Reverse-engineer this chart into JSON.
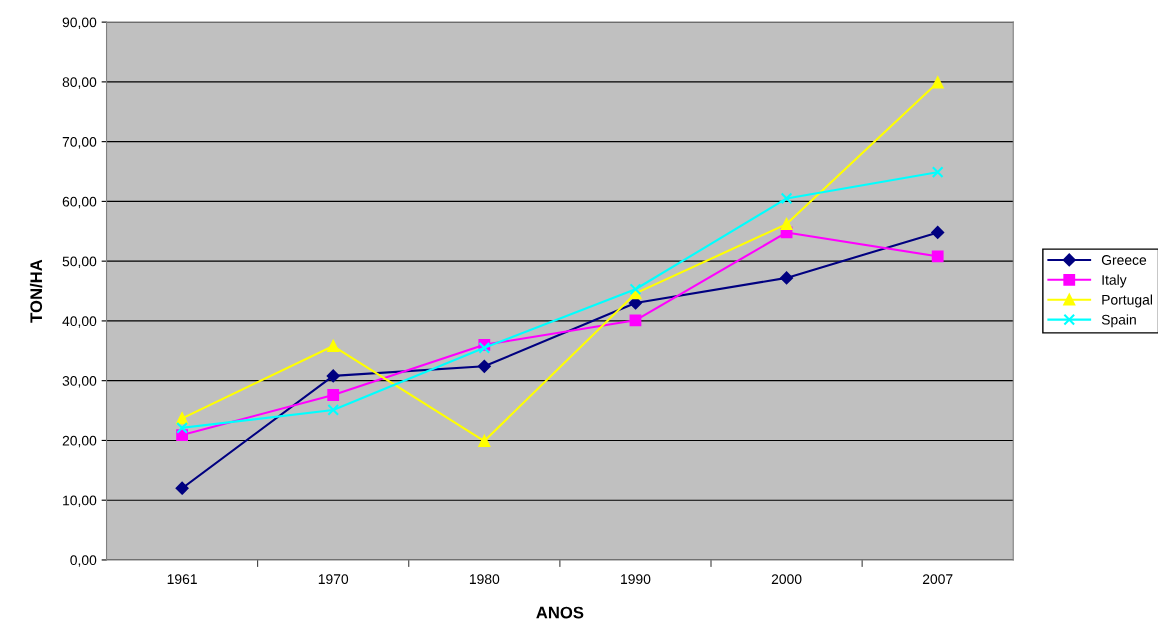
{
  "chart_data": {
    "type": "line",
    "xlabel": "ANOS",
    "ylabel": "TON/HA",
    "categories": [
      "1961",
      "1970",
      "1980",
      "1990",
      "2000",
      "2007"
    ],
    "series": [
      {
        "name": "Greece",
        "color": "#000080",
        "marker": "diamond",
        "values": [
          12.0,
          30.8,
          32.4,
          43.0,
          47.2,
          54.8
        ]
      },
      {
        "name": "Italy",
        "color": "#ff00ff",
        "marker": "square",
        "values": [
          20.9,
          27.6,
          36.0,
          40.1,
          54.8,
          50.8
        ]
      },
      {
        "name": "Portugal",
        "color": "#ffff00",
        "marker": "triangle",
        "values": [
          23.7,
          35.8,
          19.9,
          44.6,
          56.2,
          79.9
        ]
      },
      {
        "name": "Spain",
        "color": "#00ffff",
        "marker": "cross",
        "values": [
          22.1,
          25.1,
          35.5,
          45.3,
          60.5,
          64.9
        ]
      }
    ],
    "ylim": [
      0,
      90
    ],
    "yticks": [
      {
        "value": 0,
        "label": "0,00"
      },
      {
        "value": 10,
        "label": "10,00"
      },
      {
        "value": 20,
        "label": "20,00"
      },
      {
        "value": 30,
        "label": "30,00"
      },
      {
        "value": 40,
        "label": "40,00"
      },
      {
        "value": 50,
        "label": "50,00"
      },
      {
        "value": 60,
        "label": "60,00"
      },
      {
        "value": 70,
        "label": "70,00"
      },
      {
        "value": 80,
        "label": "80,00"
      },
      {
        "value": 90,
        "label": "90,00"
      }
    ],
    "grid": "y",
    "legend": "right",
    "line_style": "solid"
  }
}
